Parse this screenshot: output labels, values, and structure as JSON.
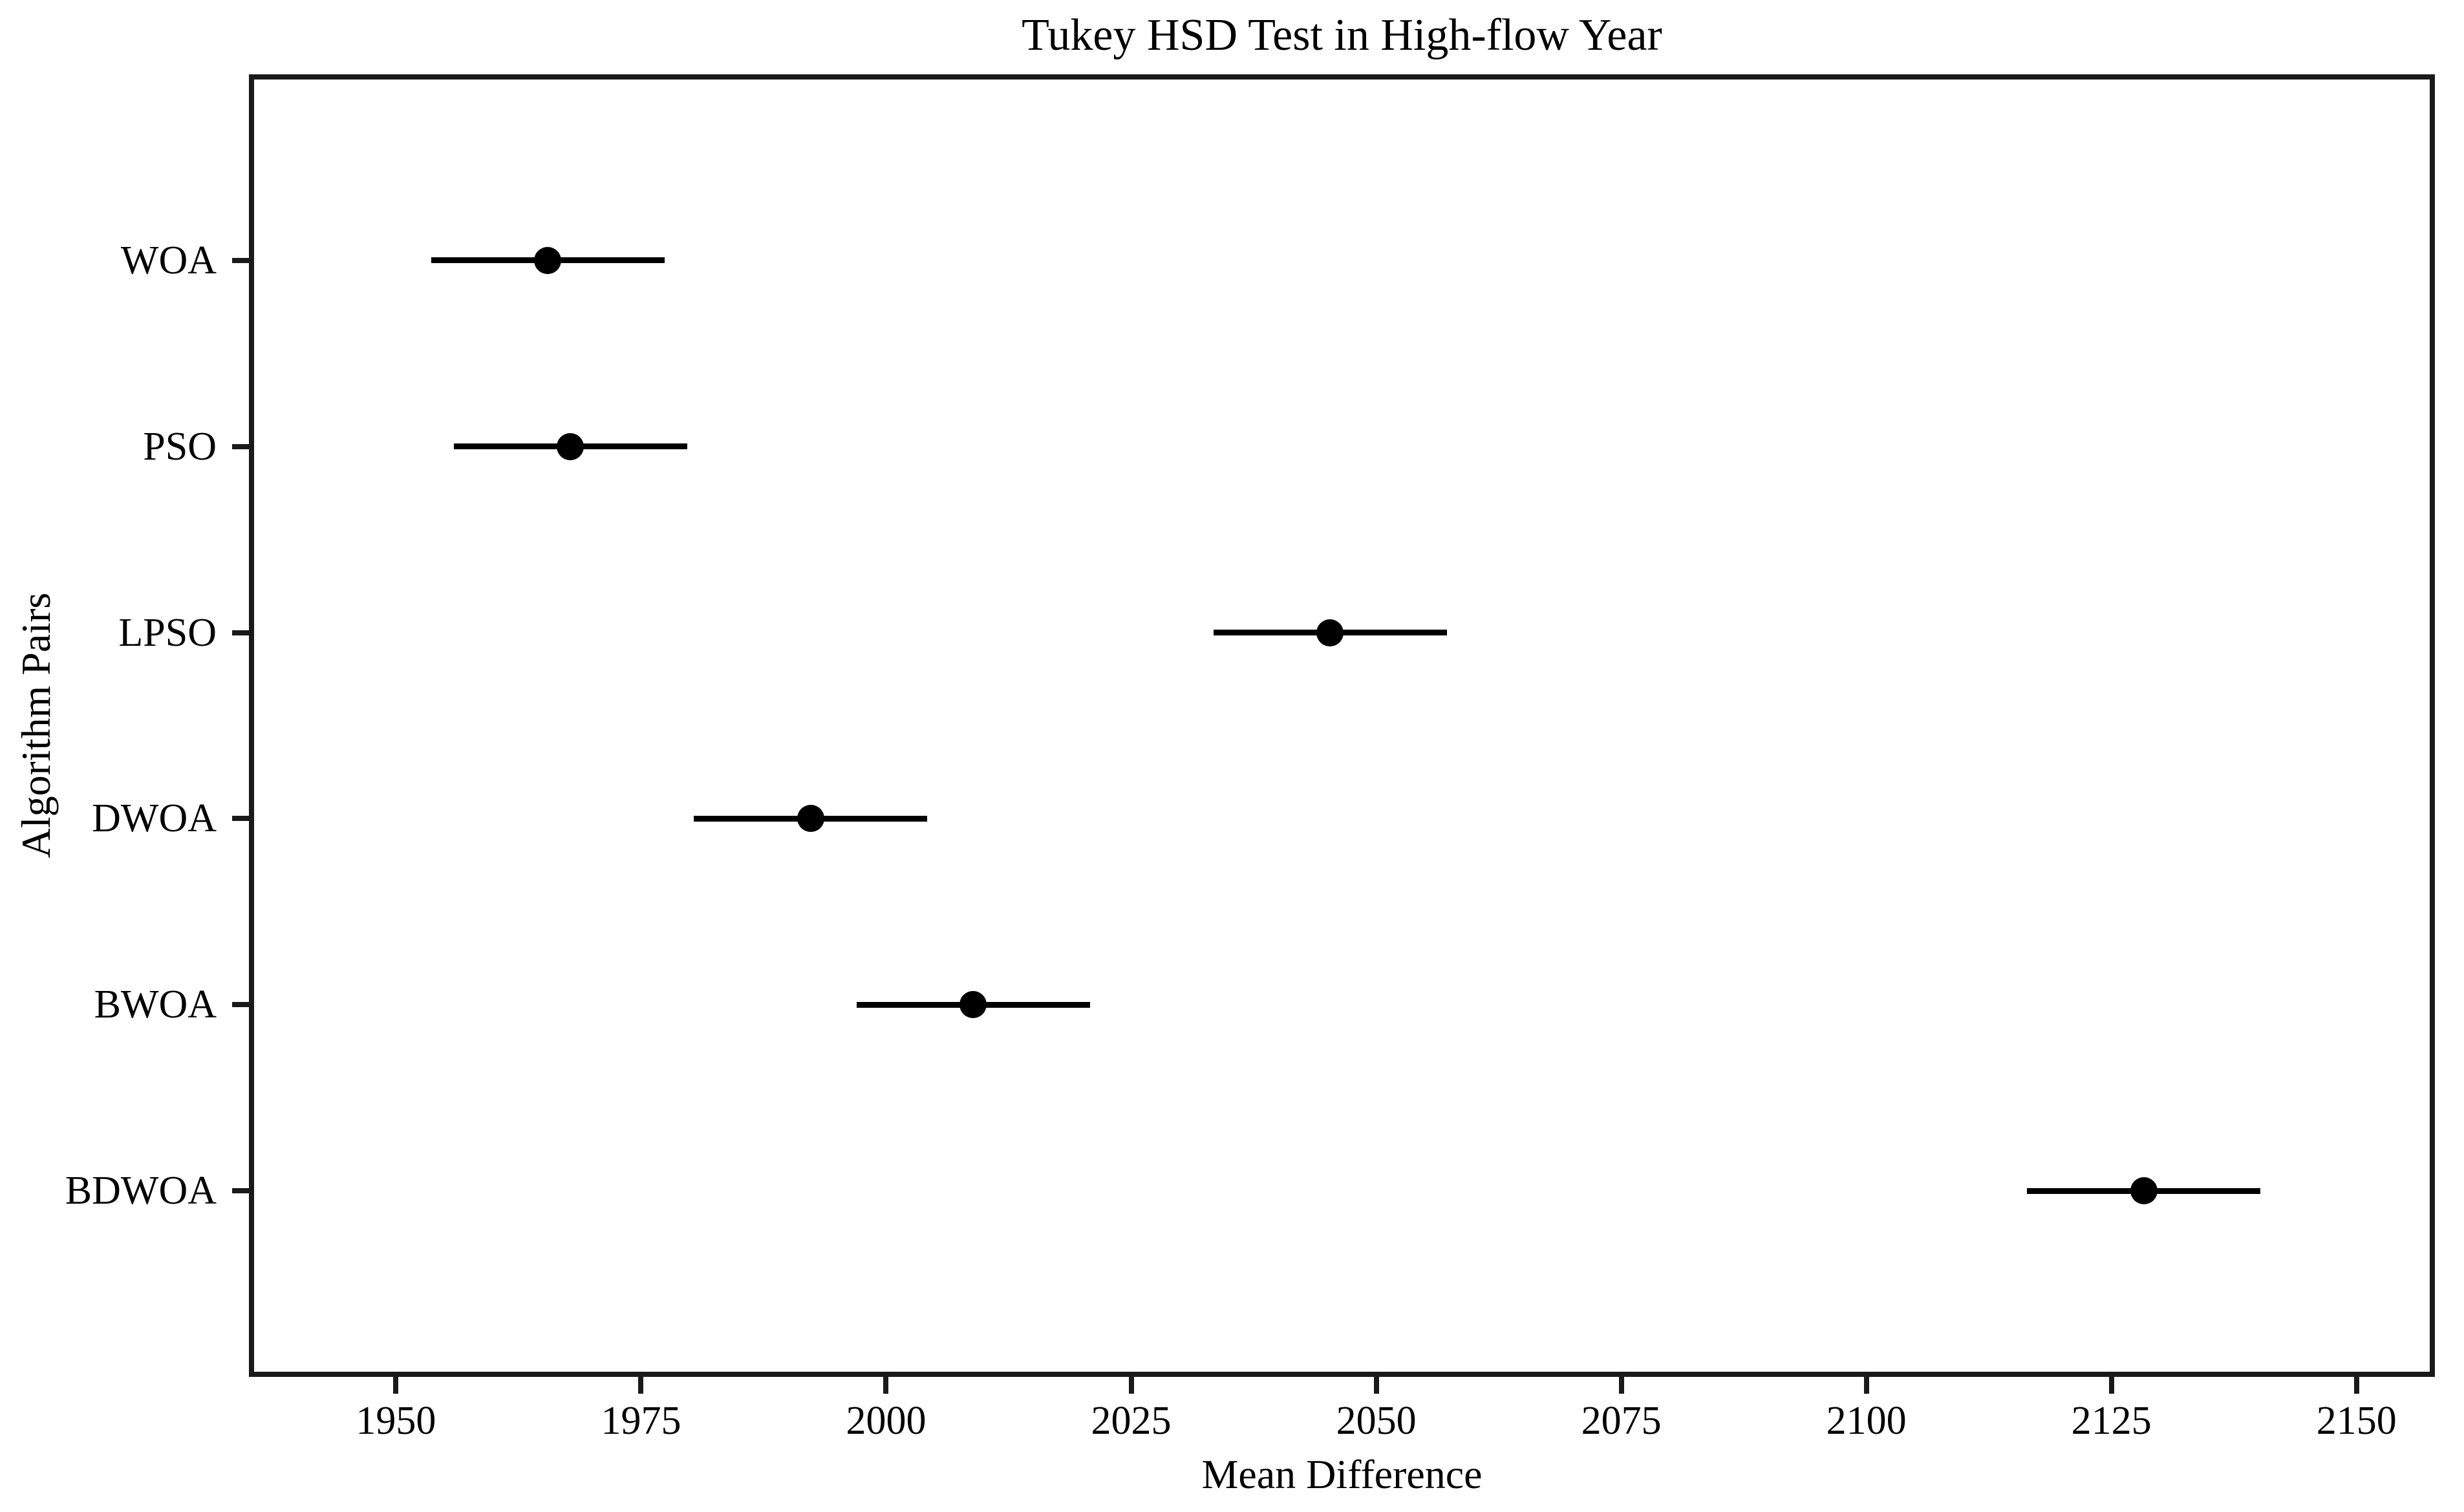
{
  "figure": {
    "background_color": "#ffffff",
    "line_color": "#1a1a1a",
    "marker_color": "#000000",
    "text_color": "#000000"
  },
  "chart_data": {
    "type": "scatter",
    "subtype": "tukey-hsd-mean-difference-intervals",
    "title": "Tukey HSD Test in High-flow Year",
    "xlabel": "Mean Difference",
    "ylabel": "Algorithm Pairs",
    "categories": [
      "WOA",
      "PSO",
      "LPSO",
      "DWOA",
      "BWOA",
      "BDWOA"
    ],
    "series": [
      {
        "name": "mean_difference",
        "values": [
          1965.5,
          1967.8,
          2045.3,
          1992.3,
          2008.9,
          2128.3
        ]
      },
      {
        "name": "ci_low",
        "values": [
          1953.6,
          1955.9,
          2033.4,
          1980.4,
          1997.0,
          2116.4
        ]
      },
      {
        "name": "ci_high",
        "values": [
          1977.4,
          1979.7,
          2057.2,
          2004.2,
          2020.8,
          2140.2
        ]
      }
    ],
    "ci_halfwidth_approx": 11.9,
    "xlim": [
      1935,
      2158
    ],
    "x_ticks": [
      1950,
      1975,
      2000,
      2025,
      2050,
      2075,
      2100,
      2125,
      2150
    ],
    "grid": false,
    "legend_position": "none",
    "marker": "filled-circle",
    "marker_color": "#000000",
    "errorbar_color": "#000000"
  }
}
